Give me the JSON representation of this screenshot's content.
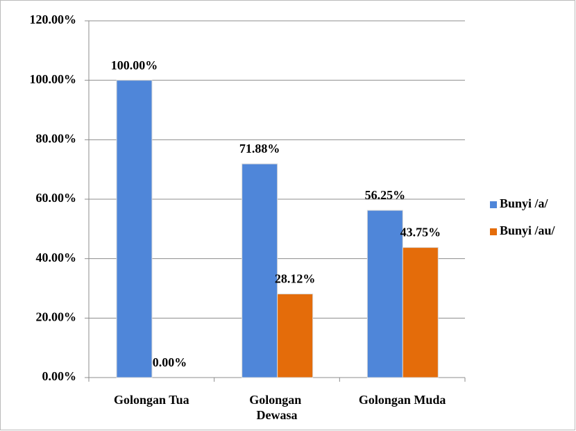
{
  "chart_data": {
    "type": "bar",
    "categories": [
      "Golongan Tua",
      "Golongan Dewasa",
      "Golongan Muda"
    ],
    "series": [
      {
        "name": "Bunyi /a/",
        "color": "#4f86d9",
        "values": [
          100,
          71.88,
          56.25
        ],
        "value_labels": [
          "100.00%",
          "71.88%",
          "56.25%"
        ]
      },
      {
        "name": "Bunyi /au/",
        "color": "#e46c0a",
        "values": [
          0,
          28.12,
          43.75
        ],
        "value_labels": [
          "0.00%",
          "28.12%",
          "43.75%"
        ]
      }
    ],
    "ylim": [
      0,
      120
    ],
    "yticks": [
      {
        "value": 0,
        "label": "0.00%"
      },
      {
        "value": 20,
        "label": "20.00%"
      },
      {
        "value": 40,
        "label": "40.00%"
      },
      {
        "value": 60,
        "label": "60.00%"
      },
      {
        "value": 80,
        "label": "80.00%"
      },
      {
        "value": 100,
        "label": "100.00%"
      },
      {
        "value": 120,
        "label": "120.00%"
      }
    ],
    "grid": true,
    "legend": "right"
  }
}
